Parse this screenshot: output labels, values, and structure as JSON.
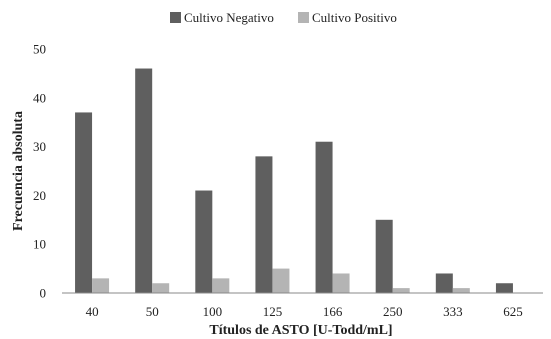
{
  "chart_data": {
    "type": "bar",
    "title": "",
    "xlabel": "Títulos de ASTO [U-Todd/mL]",
    "ylabel": "Frecuencia absoluta",
    "categories": [
      "40",
      "50",
      "100",
      "125",
      "166",
      "250",
      "333",
      "625"
    ],
    "series": [
      {
        "name": "Cultivo Negativo",
        "color": "#5f5f5f",
        "values": [
          37,
          46,
          21,
          28,
          31,
          15,
          4,
          2
        ]
      },
      {
        "name": "Cultivo Positivo",
        "color": "#b4b4b4",
        "values": [
          3,
          2,
          3,
          5,
          4,
          1,
          1,
          0
        ]
      }
    ],
    "ylim": [
      0,
      50
    ],
    "yticks": [
      0,
      10,
      20,
      30,
      40,
      50
    ],
    "grid": false,
    "legend_position": "top-center"
  }
}
